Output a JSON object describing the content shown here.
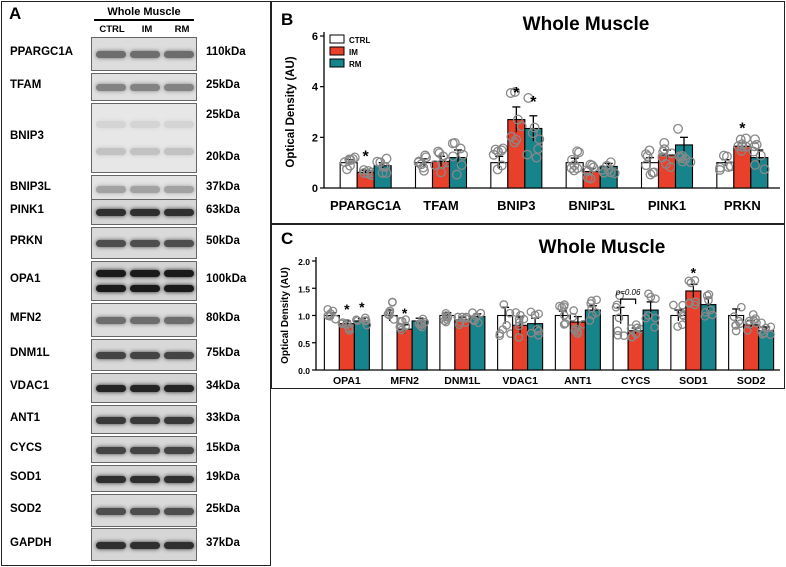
{
  "panelA": {
    "label": "A",
    "header": "Whole Muscle",
    "lanes": [
      "CTRL",
      "IM",
      "RM"
    ],
    "rows": [
      {
        "protein": "PPARGC1A",
        "kda": "110kDa"
      },
      {
        "protein": "TFAM",
        "kda": "25kDa"
      },
      {
        "protein": "BNIP3",
        "kda": "25kDa",
        "kda2": "20kDa"
      },
      {
        "protein": "BNIP3L",
        "kda": "37kDa"
      },
      {
        "protein": "PINK1",
        "kda": "63kDa"
      },
      {
        "protein": "PRKN",
        "kda": "50kDa"
      },
      {
        "protein": "OPA1",
        "kda": "100kDa"
      },
      {
        "protein": "MFN2",
        "kda": "80kDa"
      },
      {
        "protein": "DNM1L",
        "kda": "75kDa"
      },
      {
        "protein": "VDAC1",
        "kda": "34kDa"
      },
      {
        "protein": "ANT1",
        "kda": "33kDa"
      },
      {
        "protein": "CYCS",
        "kda": "15kDa"
      },
      {
        "protein": "SOD1",
        "kda": "19kDa"
      },
      {
        "protein": "SOD2",
        "kda": "25kDa"
      },
      {
        "protein": "GAPDH",
        "kda": "37kDa"
      }
    ]
  },
  "colors": {
    "CTRL": "#ffffff",
    "IM": "#e8402a",
    "RM": "#17838a"
  },
  "chart_data": [
    {
      "panel": "B",
      "type": "bar",
      "title": "Whole Muscle",
      "ylabel": "Optical Density (AU)",
      "ylim": [
        0,
        6
      ],
      "yticks": [
        0,
        2,
        4,
        6
      ],
      "legend": [
        "CTRL",
        "IM",
        "RM"
      ],
      "legend_position": "top-left",
      "categories": [
        "PPARGC1A",
        "TFAM",
        "BNIP3",
        "BNIP3L",
        "PINK1",
        "PRKN"
      ],
      "series": [
        {
          "name": "CTRL",
          "values": [
            1.0,
            1.0,
            1.0,
            1.0,
            1.0,
            1.0
          ],
          "errors": [
            0.12,
            0.15,
            0.25,
            0.18,
            0.2,
            0.12
          ]
        },
        {
          "name": "IM",
          "values": [
            0.62,
            1.05,
            2.7,
            0.65,
            1.3,
            1.65
          ],
          "errors": [
            0.08,
            0.2,
            0.5,
            0.12,
            0.2,
            0.15
          ]
        },
        {
          "name": "RM",
          "values": [
            0.88,
            1.2,
            2.35,
            0.85,
            1.7,
            1.2
          ],
          "errors": [
            0.12,
            0.3,
            0.5,
            0.12,
            0.3,
            0.3
          ]
        }
      ],
      "significance": [
        {
          "category": "PPARGC1A",
          "series": "IM",
          "label": "*"
        },
        {
          "category": "BNIP3",
          "series": "IM",
          "label": "*"
        },
        {
          "category": "BNIP3",
          "series": "RM",
          "label": "*"
        },
        {
          "category": "PRKN",
          "series": "IM",
          "label": "*"
        }
      ]
    },
    {
      "panel": "C",
      "type": "bar",
      "title": "Whole Muscle",
      "ylabel": "Optical Density (AU)",
      "ylim": [
        0,
        2.0
      ],
      "yticks": [
        0.0,
        0.5,
        1.0,
        1.5,
        2.0
      ],
      "categories": [
        "OPA1",
        "MFN2",
        "DNM1L",
        "VDAC1",
        "ANT1",
        "CYCS",
        "SOD1",
        "SOD2"
      ],
      "series": [
        {
          "name": "CTRL",
          "values": [
            1.0,
            1.0,
            1.0,
            1.0,
            1.0,
            1.0,
            1.0,
            1.0
          ],
          "errors": [
            0.05,
            0.1,
            0.05,
            0.15,
            0.08,
            0.15,
            0.1,
            0.12
          ]
        },
        {
          "name": "IM",
          "values": [
            0.85,
            0.75,
            0.92,
            0.82,
            0.88,
            0.72,
            1.45,
            0.83
          ],
          "errors": [
            0.05,
            0.08,
            0.05,
            0.15,
            0.1,
            0.05,
            0.12,
            0.08
          ]
        },
        {
          "name": "RM",
          "values": [
            0.9,
            0.9,
            0.98,
            0.85,
            1.1,
            1.1,
            1.2,
            0.72
          ],
          "errors": [
            0.04,
            0.05,
            0.05,
            0.1,
            0.08,
            0.15,
            0.12,
            0.07
          ]
        }
      ],
      "significance": [
        {
          "category": "OPA1",
          "series": "IM",
          "label": "*"
        },
        {
          "category": "OPA1",
          "series": "RM",
          "label": "*"
        },
        {
          "category": "MFN2",
          "series": "IM",
          "label": "*"
        },
        {
          "category": "SOD1",
          "series": "IM",
          "label": "*"
        }
      ],
      "annotations": [
        {
          "category": "CYCS",
          "between": [
            "CTRL",
            "IM"
          ],
          "text": "p=0.06"
        }
      ]
    }
  ]
}
